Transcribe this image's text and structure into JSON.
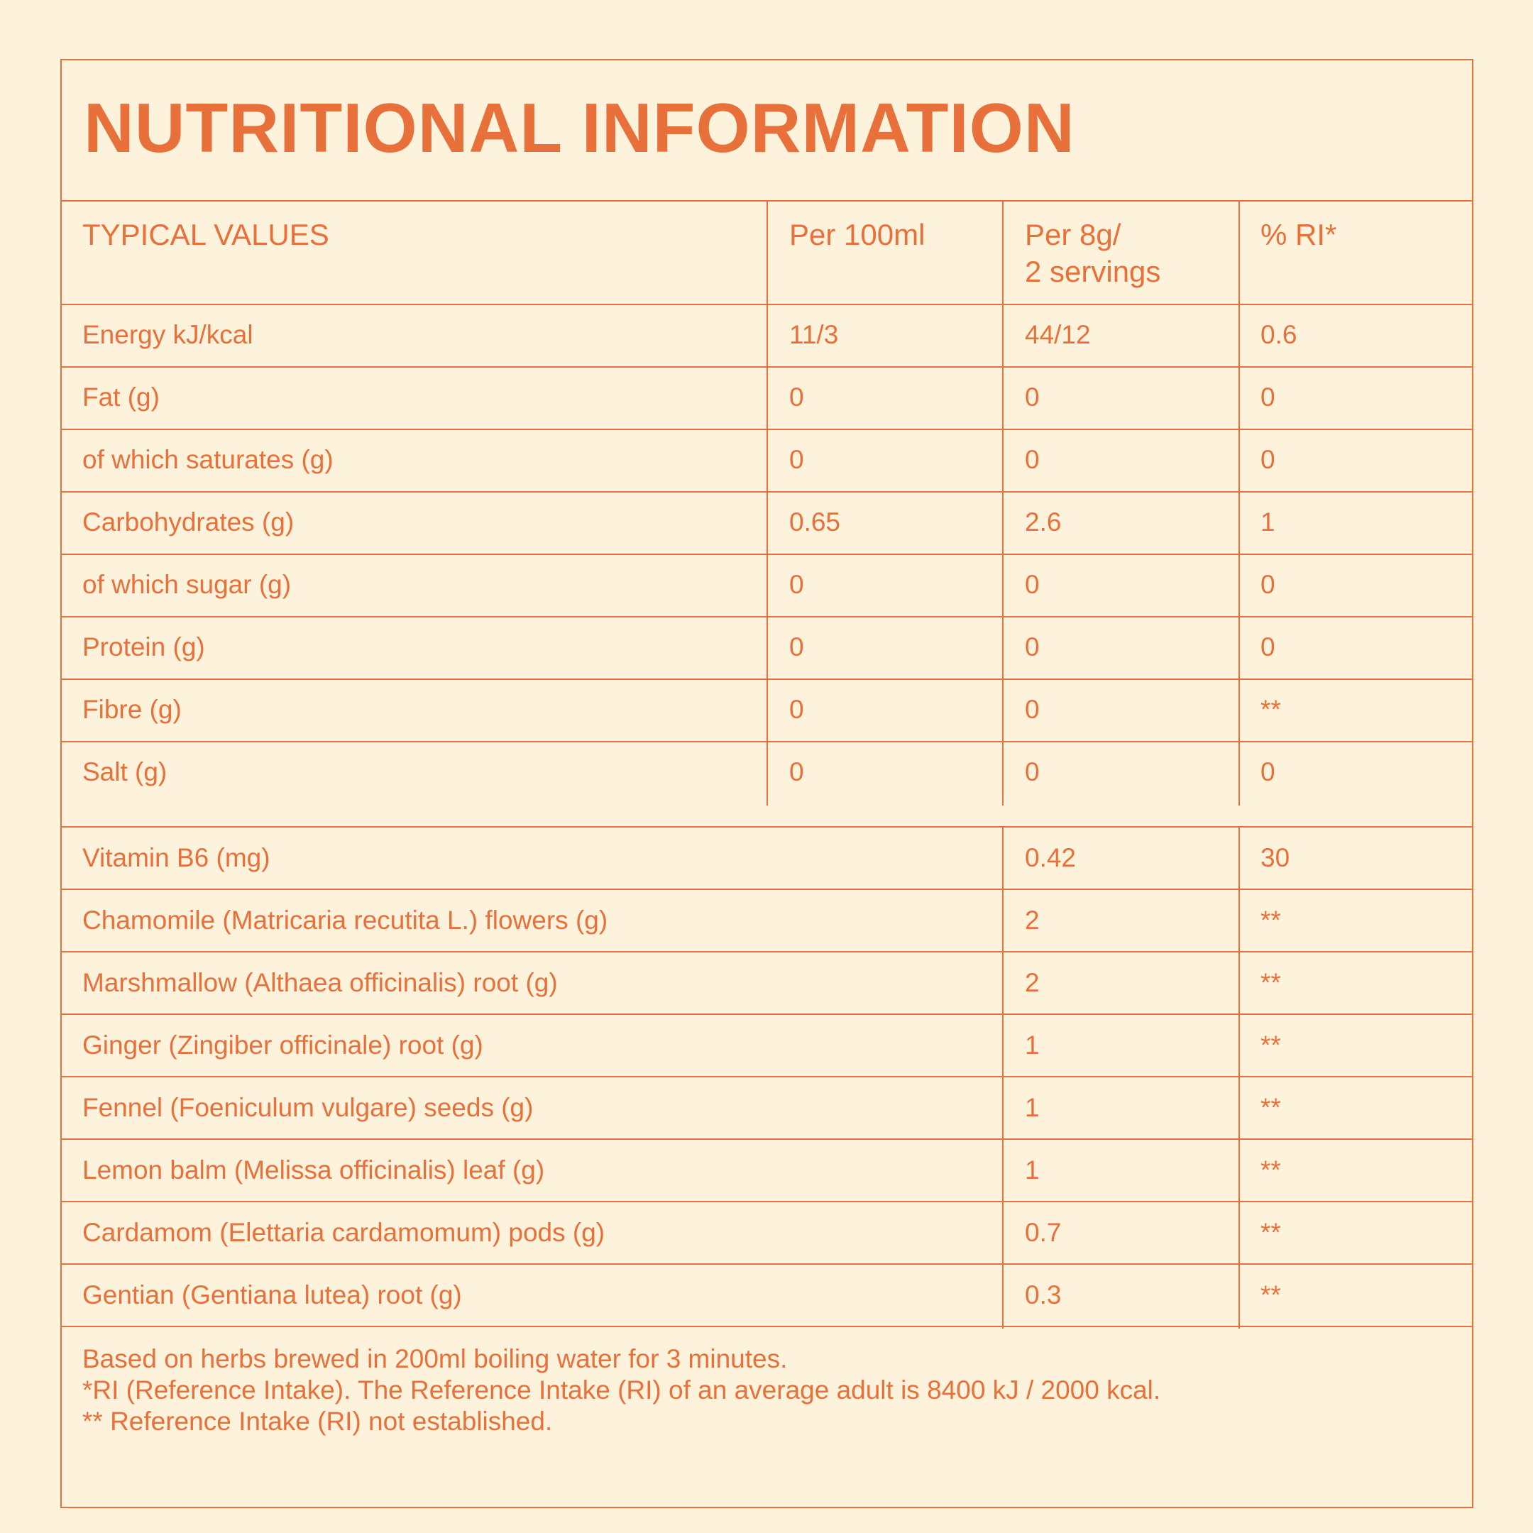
{
  "title": "NUTRITIONAL INFORMATION",
  "headers": {
    "typical": "TYPICAL VALUES",
    "per100": "Per 100ml",
    "per8g_line1": "Per 8g/",
    "per8g_line2": "2 servings",
    "ri": "% RI*"
  },
  "nutrients": [
    {
      "name": "Energy kJ/kcal",
      "per100": "11/3",
      "per8g": "44/12",
      "ri": "0.6"
    },
    {
      "name": "Fat (g)",
      "per100": "0",
      "per8g": "0",
      "ri": "0"
    },
    {
      "name": "of which saturates (g)",
      "per100": "0",
      "per8g": "0",
      "ri": "0"
    },
    {
      "name": "Carbohydrates (g)",
      "per100": "0.65",
      "per8g": "2.6",
      "ri": "1"
    },
    {
      "name": "of which sugar (g)",
      "per100": "0",
      "per8g": "0",
      "ri": "0"
    },
    {
      "name": "Protein (g)",
      "per100": "0",
      "per8g": "0",
      "ri": "0"
    },
    {
      "name": "Fibre (g)",
      "per100": "0",
      "per8g": "0",
      "ri": "**"
    },
    {
      "name": "Salt (g)",
      "per100": "0",
      "per8g": "0",
      "ri": "0"
    }
  ],
  "ingredients": [
    {
      "name": "Vitamin B6 (mg)",
      "per8g": "0.42",
      "ri": "30"
    },
    {
      "name": "Chamomile (Matricaria recutita L.) flowers (g)",
      "per8g": "2",
      "ri": "**"
    },
    {
      "name": "Marshmallow (Althaea officinalis) root (g)",
      "per8g": "2",
      "ri": "**"
    },
    {
      "name": "Ginger (Zingiber officinale) root (g)",
      "per8g": "1",
      "ri": "**"
    },
    {
      "name": "Fennel (Foeniculum vulgare) seeds (g)",
      "per8g": "1",
      "ri": "**"
    },
    {
      "name": "Lemon balm (Melissa officinalis) leaf (g)",
      "per8g": "1",
      "ri": "**"
    },
    {
      "name": "Cardamom (Elettaria cardamomum) pods (g)",
      "per8g": "0.7",
      "ri": "**"
    },
    {
      "name": "Gentian (Gentiana lutea) root (g)",
      "per8g": "0.3",
      "ri": "**"
    }
  ],
  "footnotes": [
    "Based on herbs brewed in 200ml boiling water for 3 minutes.",
    "*RI (Reference Intake). The Reference Intake (RI) of an average adult is 8400 kJ / 2000 kcal.",
    "** Reference Intake (RI) not established."
  ],
  "colors": {
    "accent": "#e8703a",
    "background": "#fdf2db"
  }
}
